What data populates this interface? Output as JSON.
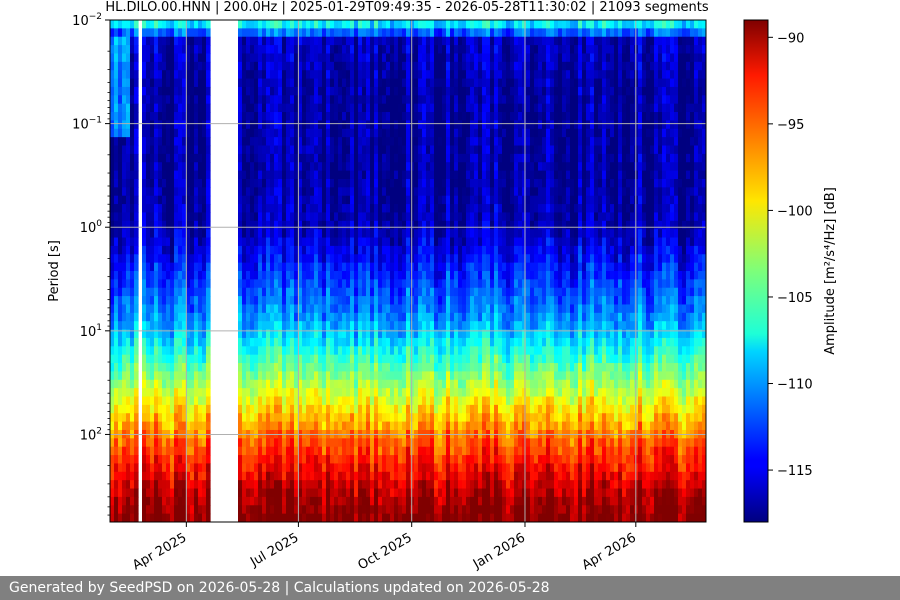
{
  "chart_data": {
    "type": "heatmap",
    "title": "HL.DILO.00.HNN | 200.0Hz | 2025-01-29T09:49:35 - 2026-05-28T11:30:02 | 21093 segments",
    "xlabel": "",
    "ylabel": "Period [s]",
    "x_start": "2025-01-29",
    "x_end": "2026-05-28",
    "y_scale": "log",
    "y_inverted": true,
    "ylim": [
      0.01,
      700
    ],
    "x_ticks": [
      {
        "date": "2025-04-01",
        "label": "Apr 2025"
      },
      {
        "date": "2025-07-01",
        "label": "Jul 2025"
      },
      {
        "date": "2025-10-01",
        "label": "Oct 2025"
      },
      {
        "date": "2026-01-01",
        "label": "Jan 2026"
      },
      {
        "date": "2026-04-01",
        "label": "Apr 2026"
      }
    ],
    "y_ticks": [
      {
        "period": 0.01,
        "base": "10",
        "exp": "−2"
      },
      {
        "period": 0.1,
        "base": "10",
        "exp": "−1"
      },
      {
        "period": 1,
        "base": "10",
        "exp": "0"
      },
      {
        "period": 10,
        "base": "10",
        "exp": "1"
      },
      {
        "period": 100,
        "base": "10",
        "exp": "2"
      }
    ],
    "grid": true,
    "gaps": [
      {
        "start": "2025-04-22",
        "end": "2025-05-11"
      },
      {
        "start": "2025-02-22",
        "end": "2025-02-23"
      }
    ],
    "amplitude_profile": [
      {
        "period": 0.01,
        "db": -107
      },
      {
        "period": 0.012,
        "db": -108
      },
      {
        "period": 0.015,
        "db": -116
      },
      {
        "period": 0.05,
        "db": -117
      },
      {
        "period": 0.3,
        "db": -117
      },
      {
        "period": 1,
        "db": -116.5
      },
      {
        "period": 3,
        "db": -113
      },
      {
        "period": 8,
        "db": -110
      },
      {
        "period": 20,
        "db": -105
      },
      {
        "period": 40,
        "db": -101
      },
      {
        "period": 70,
        "db": -98
      },
      {
        "period": 120,
        "db": -95
      },
      {
        "period": 220,
        "db": -92.5
      },
      {
        "period": 400,
        "db": -90
      },
      {
        "period": 700,
        "db": -88.5
      }
    ],
    "colormap": "jet",
    "colorbar": {
      "label": "Amplitude [m²/s⁴/Hz] [dB]",
      "min": -118,
      "max": -89,
      "ticks": [
        -115,
        -110,
        -105,
        -100,
        -95,
        -90
      ],
      "tick_labels": [
        "−115",
        "−110",
        "−105",
        "−100",
        "−95",
        "−90"
      ]
    },
    "legend": "none"
  },
  "footer": {
    "text": "Generated by SeedPSD on 2026-05-28 | Calculations updated on 2026-05-28"
  }
}
